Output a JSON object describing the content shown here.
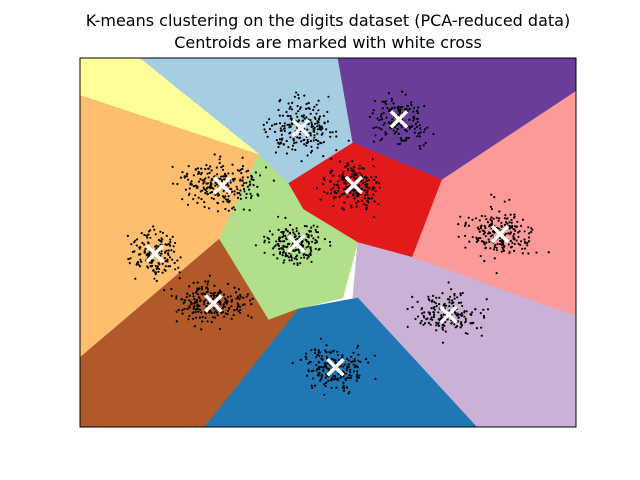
{
  "chart_data": {
    "type": "scatter",
    "title": "K-means clustering on the digits dataset (PCA-reduced data)",
    "subtitle": "Centroids are marked with white cross",
    "xlabel": "",
    "ylabel": "",
    "xticks": [],
    "yticks": [],
    "xlim": [
      0,
      100
    ],
    "ylim": [
      0,
      100
    ],
    "grid": false,
    "legend": false,
    "decision_regions": {
      "colormap": "Paired",
      "colors": [
        "#a6cee3",
        "#6a3d9a",
        "#e31a1c",
        "#fb9a99",
        "#b2df8a",
        "#cab2d6",
        "#1f78b4",
        "#b15928",
        "#fdbf6f",
        "#ffff99"
      ],
      "polygons": [
        [
          [
            12,
            100
          ],
          [
            53,
            100
          ],
          [
            55,
            77
          ],
          [
            42,
            66
          ],
          [
            36,
            74
          ]
        ],
        [
          [
            52,
            100
          ],
          [
            100,
            100
          ],
          [
            100,
            91
          ],
          [
            73,
            67
          ],
          [
            55,
            77
          ]
        ],
        [
          [
            42,
            66
          ],
          [
            55,
            77
          ],
          [
            73,
            67
          ],
          [
            67,
            46
          ],
          [
            56,
            50
          ],
          [
            45,
            59
          ]
        ],
        [
          [
            73,
            67
          ],
          [
            100,
            91
          ],
          [
            100,
            30
          ],
          [
            67,
            46
          ]
        ],
        [
          [
            28,
            51
          ],
          [
            36,
            74
          ],
          [
            42,
            66
          ],
          [
            45,
            59
          ],
          [
            56,
            50
          ],
          [
            53,
            35
          ],
          [
            44,
            32
          ],
          [
            38,
            29
          ]
        ],
        [
          [
            56,
            50
          ],
          [
            67,
            46
          ],
          [
            100,
            30
          ],
          [
            100,
            0
          ],
          [
            80,
            0
          ],
          [
            55,
            35
          ]
        ],
        [
          [
            25,
            0
          ],
          [
            80,
            0
          ],
          [
            56,
            35
          ],
          [
            44,
            32
          ]
        ],
        [
          [
            0,
            0
          ],
          [
            25,
            0
          ],
          [
            44,
            32
          ],
          [
            38,
            29
          ],
          [
            28,
            51
          ],
          [
            0,
            19
          ]
        ],
        [
          [
            0,
            19
          ],
          [
            28,
            51
          ],
          [
            36,
            74
          ],
          [
            0,
            90
          ]
        ],
        [
          [
            0,
            90
          ],
          [
            36,
            74
          ],
          [
            12,
            100
          ],
          [
            0,
            100
          ]
        ]
      ]
    },
    "clusters": [
      {
        "center": [
          44.5,
          81.0
        ],
        "spread": [
          9,
          9
        ],
        "count": 220
      },
      {
        "center": [
          64.3,
          83.4
        ],
        "spread": [
          7,
          8
        ],
        "count": 160
      },
      {
        "center": [
          55.2,
          65.6
        ],
        "spread": [
          7,
          7
        ],
        "count": 200
      },
      {
        "center": [
          84.7,
          52.3
        ],
        "spread": [
          8,
          9
        ],
        "count": 220
      },
      {
        "center": [
          43.6,
          49.7
        ],
        "spread": [
          8,
          7
        ],
        "count": 200
      },
      {
        "center": [
          74.3,
          30.4
        ],
        "spread": [
          8,
          7
        ],
        "count": 180
      },
      {
        "center": [
          51.5,
          16.2
        ],
        "spread": [
          9,
          7
        ],
        "count": 200
      },
      {
        "center": [
          26.9,
          33.5
        ],
        "spread": [
          9,
          7
        ],
        "count": 220
      },
      {
        "center": [
          15.1,
          47.0
        ],
        "spread": [
          6,
          8
        ],
        "count": 160
      },
      {
        "center": [
          28.7,
          65.5
        ],
        "spread": [
          10,
          8
        ],
        "count": 230
      }
    ],
    "centroids": [
      [
        44.5,
        81.0
      ],
      [
        64.3,
        83.4
      ],
      [
        55.2,
        65.6
      ],
      [
        84.7,
        52.3
      ],
      [
        43.6,
        49.7
      ],
      [
        74.3,
        30.4
      ],
      [
        51.5,
        16.2
      ],
      [
        26.9,
        33.5
      ],
      [
        15.1,
        47.0
      ],
      [
        28.7,
        65.5
      ]
    ],
    "point_color": "#000000",
    "centroid_color": "#ffffff"
  }
}
